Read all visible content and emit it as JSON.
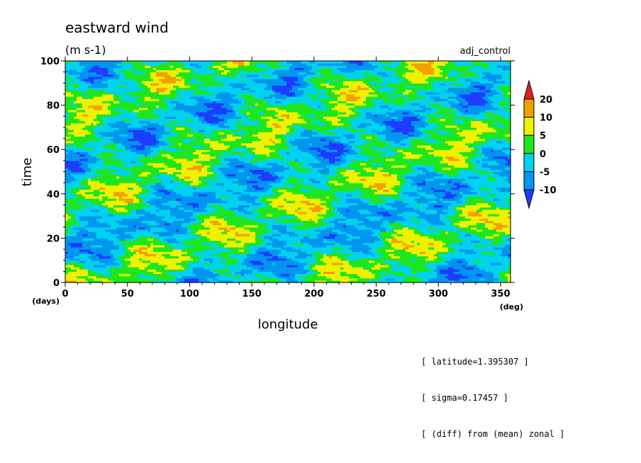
{
  "chart_data": {
    "type": "heatmap",
    "title": "eastward wind",
    "units": "(m s-1)",
    "experiment": "adj_control",
    "xlabel": "longitude",
    "ylabel": "time",
    "x_unit": "(deg)",
    "y_unit": "(days)",
    "xlim": [
      0,
      358
    ],
    "ylim": [
      0,
      100
    ],
    "x_ticks": [
      0,
      50,
      100,
      150,
      200,
      250,
      300,
      350
    ],
    "y_ticks": [
      0,
      20,
      40,
      60,
      80,
      100
    ],
    "colorbar": {
      "levels": [
        -10,
        -5,
        0,
        5,
        10,
        20
      ],
      "bins": [
        {
          "range": "< -10",
          "color": "#1e3cff"
        },
        {
          "range": "-10 to -5",
          "color": "#0096f0"
        },
        {
          "range": "-5 to 0",
          "color": "#00d2f0"
        },
        {
          "range": "0 to 5",
          "color": "#1ee61e"
        },
        {
          "range": "5 to 10",
          "color": "#f0f000"
        },
        {
          "range": "10 to 20",
          "color": "#f0a000"
        },
        {
          "range": "> 20",
          "color": "#e61e1e"
        }
      ]
    },
    "annotations": [
      "[ latitude=1.395307 ]",
      "[ sigma=0.17457 ]",
      "[ (diff) from (mean) zonal ]"
    ]
  }
}
